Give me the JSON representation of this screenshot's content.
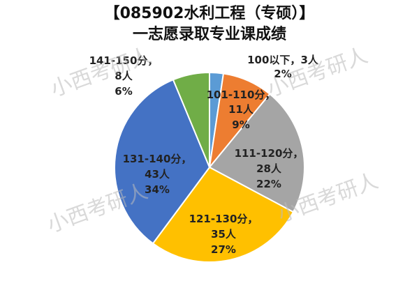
{
  "chart_data": {
    "type": "pie",
    "title": [
      "【085902水利工程（专硕）】",
      "一志愿录取专业课成绩"
    ],
    "categories": [
      "100以下",
      "101-110分",
      "111-120分",
      "121-130分",
      "131-140分",
      "141-150分"
    ],
    "label_separator": "，",
    "values": [
      3,
      11,
      28,
      35,
      43,
      8
    ],
    "value_labels": [
      "3人",
      "11人",
      "28人",
      "35人",
      "43人",
      "8人"
    ],
    "percentages": [
      2,
      9,
      22,
      27,
      34,
      6
    ],
    "percentage_labels": [
      "2%",
      "9%",
      "22%",
      "27%",
      "34%",
      "6%"
    ],
    "colors": [
      "#5b9bd5",
      "#ed7d31",
      "#a5a5a5",
      "#ffc000",
      "#4472c4",
      "#70ad47"
    ],
    "watermark": "小西考研人"
  }
}
